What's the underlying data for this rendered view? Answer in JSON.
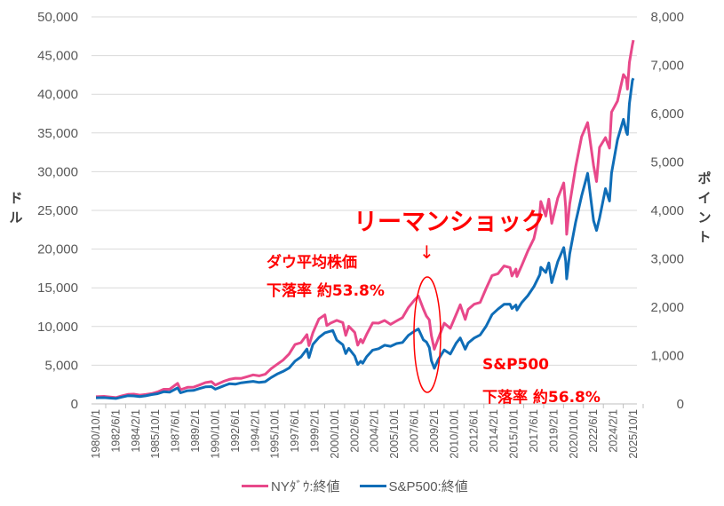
{
  "chart_data": {
    "type": "line",
    "title": "",
    "left_axis": {
      "label": "ドル",
      "ylim": [
        0,
        50000
      ],
      "ticks": [
        "0",
        "5,000",
        "10,000",
        "15,000",
        "20,000",
        "25,000",
        "30,000",
        "35,000",
        "40,000",
        "45,000",
        "50,000"
      ]
    },
    "right_axis": {
      "label": "ポイント",
      "ylim": [
        0,
        8000
      ],
      "ticks": [
        "0",
        "1,000",
        "2,000",
        "3,000",
        "4,000",
        "5,000",
        "6,000",
        "7,000",
        "8,000"
      ]
    },
    "x_ticks": [
      "1980/10/1",
      "1982/6/1",
      "1984/2/1",
      "1985/10/1",
      "1987/6/1",
      "1989/2/1",
      "1990/10/1",
      "1992/6/1",
      "1994/2/1",
      "1995/10/1",
      "1997/6/1",
      "1999/2/1",
      "2000/10/1",
      "2002/6/1",
      "2004/2/1",
      "2005/10/1",
      "2007/6/1",
      "2009/2/1",
      "2010/10/1",
      "2012/6/1",
      "2014/2/1",
      "2015/10/1",
      "2017/6/1",
      "2019/2/1",
      "2020/10/1",
      "2022/6/1",
      "2024/2/1",
      "2025/10/1"
    ],
    "grid": true,
    "legend_position": "bottom",
    "colors": {
      "dow": "#e8488a",
      "sp500": "#0f6db7",
      "annotation": "#ff0000"
    },
    "series": [
      {
        "name": "NYﾀﾞｳ:終値",
        "axis": "left",
        "points": [
          [
            "1980-10",
            925
          ],
          [
            "1981-06",
            976
          ],
          [
            "1982-06",
            812
          ],
          [
            "1982-12",
            1046
          ],
          [
            "1983-06",
            1222
          ],
          [
            "1983-12",
            1258
          ],
          [
            "1984-06",
            1132
          ],
          [
            "1984-12",
            1211
          ],
          [
            "1985-06",
            1335
          ],
          [
            "1985-12",
            1546
          ],
          [
            "1986-06",
            1892
          ],
          [
            "1986-12",
            1895
          ],
          [
            "1987-08",
            2662
          ],
          [
            "1987-11",
            1833
          ],
          [
            "1988-06",
            2141
          ],
          [
            "1988-12",
            2168
          ],
          [
            "1989-06",
            2440
          ],
          [
            "1989-12",
            2753
          ],
          [
            "1990-06",
            2880
          ],
          [
            "1990-10",
            2442
          ],
          [
            "1991-06",
            2906
          ],
          [
            "1991-12",
            3168
          ],
          [
            "1992-06",
            3318
          ],
          [
            "1992-12",
            3301
          ],
          [
            "1993-06",
            3516
          ],
          [
            "1993-12",
            3754
          ],
          [
            "1994-06",
            3624
          ],
          [
            "1994-12",
            3834
          ],
          [
            "1995-06",
            4556
          ],
          [
            "1995-12",
            5117
          ],
          [
            "1996-06",
            5654
          ],
          [
            "1996-12",
            6448
          ],
          [
            "1997-06",
            7672
          ],
          [
            "1997-12",
            7908
          ],
          [
            "1998-06",
            8952
          ],
          [
            "1998-08",
            7539
          ],
          [
            "1998-12",
            9181
          ],
          [
            "1999-06",
            10970
          ],
          [
            "1999-12",
            11497
          ],
          [
            "2000-02",
            10128
          ],
          [
            "2000-06",
            10448
          ],
          [
            "2000-12",
            10787
          ],
          [
            "2001-06",
            10502
          ],
          [
            "2001-09",
            8848
          ],
          [
            "2001-12",
            10021
          ],
          [
            "2002-06",
            9243
          ],
          [
            "2002-09",
            7592
          ],
          [
            "2002-12",
            8342
          ],
          [
            "2003-02",
            7891
          ],
          [
            "2003-06",
            8985
          ],
          [
            "2003-12",
            10454
          ],
          [
            "2004-06",
            10435
          ],
          [
            "2004-12",
            10783
          ],
          [
            "2005-06",
            10275
          ],
          [
            "2005-12",
            10718
          ],
          [
            "2006-06",
            11150
          ],
          [
            "2006-12",
            12463
          ],
          [
            "2007-06",
            13408
          ],
          [
            "2007-10",
            13930
          ],
          [
            "2008-03",
            12263
          ],
          [
            "2008-06",
            11350
          ],
          [
            "2008-09",
            10851
          ],
          [
            "2008-11",
            8829
          ],
          [
            "2009-02",
            7062
          ],
          [
            "2009-06",
            8447
          ],
          [
            "2009-12",
            10428
          ],
          [
            "2010-06",
            9774
          ],
          [
            "2010-12",
            11578
          ],
          [
            "2011-04",
            12811
          ],
          [
            "2011-09",
            10913
          ],
          [
            "2011-12",
            12218
          ],
          [
            "2012-06",
            12880
          ],
          [
            "2012-12",
            13104
          ],
          [
            "2013-06",
            14910
          ],
          [
            "2013-12",
            16577
          ],
          [
            "2014-06",
            16827
          ],
          [
            "2014-12",
            17823
          ],
          [
            "2015-06",
            17620
          ],
          [
            "2015-08",
            16528
          ],
          [
            "2015-12",
            17425
          ],
          [
            "2016-01",
            16466
          ],
          [
            "2016-06",
            17930
          ],
          [
            "2016-12",
            19763
          ],
          [
            "2017-06",
            21350
          ],
          [
            "2017-12",
            24719
          ],
          [
            "2018-01",
            26149
          ],
          [
            "2018-06",
            24271
          ],
          [
            "2018-09",
            26458
          ],
          [
            "2018-12",
            23327
          ],
          [
            "2019-06",
            26600
          ],
          [
            "2019-12",
            28538
          ],
          [
            "2020-02",
            25409
          ],
          [
            "2020-03",
            21917
          ],
          [
            "2020-06",
            25813
          ],
          [
            "2020-12",
            30606
          ],
          [
            "2021-06",
            34503
          ],
          [
            "2021-12",
            36338
          ],
          [
            "2022-06",
            30775
          ],
          [
            "2022-09",
            28726
          ],
          [
            "2022-12",
            33147
          ],
          [
            "2023-06",
            34408
          ],
          [
            "2023-10",
            33053
          ],
          [
            "2023-12",
            37690
          ],
          [
            "2024-06",
            39119
          ],
          [
            "2024-12",
            42544
          ],
          [
            "2025-03",
            42002
          ],
          [
            "2025-04",
            40669
          ],
          [
            "2025-06",
            44095
          ],
          [
            "2025-09",
            46398
          ],
          [
            "2025-10",
            47000
          ]
        ]
      },
      {
        "name": "S&P500:終値",
        "axis": "right",
        "points": [
          [
            "1980-10",
            127
          ],
          [
            "1981-06",
            131
          ],
          [
            "1982-06",
            112
          ],
          [
            "1982-12",
            141
          ],
          [
            "1983-06",
            168
          ],
          [
            "1983-12",
            165
          ],
          [
            "1984-06",
            153
          ],
          [
            "1984-12",
            167
          ],
          [
            "1985-06",
            192
          ],
          [
            "1985-12",
            211
          ],
          [
            "1986-06",
            251
          ],
          [
            "1986-12",
            242
          ],
          [
            "1987-08",
            330
          ],
          [
            "1987-11",
            230
          ],
          [
            "1988-06",
            273
          ],
          [
            "1988-12",
            278
          ],
          [
            "1989-06",
            318
          ],
          [
            "1989-12",
            353
          ],
          [
            "1990-06",
            358
          ],
          [
            "1990-10",
            304
          ],
          [
            "1991-06",
            371
          ],
          [
            "1991-12",
            417
          ],
          [
            "1992-06",
            408
          ],
          [
            "1992-12",
            436
          ],
          [
            "1993-06",
            451
          ],
          [
            "1993-12",
            466
          ],
          [
            "1994-06",
            444
          ],
          [
            "1994-12",
            459
          ],
          [
            "1995-06",
            545
          ],
          [
            "1995-12",
            616
          ],
          [
            "1996-06",
            671
          ],
          [
            "1996-12",
            741
          ],
          [
            "1997-06",
            885
          ],
          [
            "1997-12",
            970
          ],
          [
            "1998-06",
            1134
          ],
          [
            "1998-08",
            957
          ],
          [
            "1998-12",
            1229
          ],
          [
            "1999-06",
            1373
          ],
          [
            "1999-12",
            1469
          ],
          [
            "2000-08",
            1518
          ],
          [
            "2000-12",
            1320
          ],
          [
            "2001-06",
            1224
          ],
          [
            "2001-09",
            1041
          ],
          [
            "2001-12",
            1148
          ],
          [
            "2002-06",
            990
          ],
          [
            "2002-09",
            815
          ],
          [
            "2002-12",
            880
          ],
          [
            "2003-02",
            841
          ],
          [
            "2003-06",
            975
          ],
          [
            "2003-12",
            1112
          ],
          [
            "2004-06",
            1141
          ],
          [
            "2004-12",
            1212
          ],
          [
            "2005-06",
            1191
          ],
          [
            "2005-12",
            1248
          ],
          [
            "2006-06",
            1270
          ],
          [
            "2006-12",
            1418
          ],
          [
            "2007-06",
            1503
          ],
          [
            "2007-10",
            1549
          ],
          [
            "2008-03",
            1323
          ],
          [
            "2008-06",
            1280
          ],
          [
            "2008-09",
            1166
          ],
          [
            "2008-11",
            896
          ],
          [
            "2009-02",
            735
          ],
          [
            "2009-06",
            919
          ],
          [
            "2009-12",
            1115
          ],
          [
            "2010-06",
            1031
          ],
          [
            "2010-12",
            1258
          ],
          [
            "2011-04",
            1364
          ],
          [
            "2011-09",
            1131
          ],
          [
            "2011-12",
            1258
          ],
          [
            "2012-06",
            1362
          ],
          [
            "2012-12",
            1426
          ],
          [
            "2013-06",
            1606
          ],
          [
            "2013-12",
            1848
          ],
          [
            "2014-06",
            1960
          ],
          [
            "2014-12",
            2059
          ],
          [
            "2015-06",
            2063
          ],
          [
            "2015-08",
            1972
          ],
          [
            "2015-12",
            2044
          ],
          [
            "2016-01",
            1940
          ],
          [
            "2016-06",
            2099
          ],
          [
            "2016-12",
            2239
          ],
          [
            "2017-06",
            2423
          ],
          [
            "2017-12",
            2674
          ],
          [
            "2018-01",
            2824
          ],
          [
            "2018-06",
            2718
          ],
          [
            "2018-09",
            2914
          ],
          [
            "2018-12",
            2507
          ],
          [
            "2019-06",
            2942
          ],
          [
            "2019-12",
            3231
          ],
          [
            "2020-02",
            2954
          ],
          [
            "2020-03",
            2585
          ],
          [
            "2020-06",
            3100
          ],
          [
            "2020-12",
            3756
          ],
          [
            "2021-06",
            4298
          ],
          [
            "2021-12",
            4766
          ],
          [
            "2022-06",
            3785
          ],
          [
            "2022-09",
            3586
          ],
          [
            "2022-12",
            3840
          ],
          [
            "2023-06",
            4450
          ],
          [
            "2023-10",
            4194
          ],
          [
            "2023-12",
            4770
          ],
          [
            "2024-06",
            5460
          ],
          [
            "2024-12",
            5882
          ],
          [
            "2025-03",
            5612
          ],
          [
            "2025-04",
            5569
          ],
          [
            "2025-06",
            6205
          ],
          [
            "2025-09",
            6688
          ],
          [
            "2025-10",
            6730
          ]
        ]
      }
    ],
    "annotations": {
      "lehman": "リーマンショック",
      "arrow": "↓",
      "dow_name": "ダウ平均株価",
      "dow_drop": "下落率 約53.8%",
      "sp_name": "S&P500",
      "sp_drop": "下落率 約56.8%"
    }
  }
}
